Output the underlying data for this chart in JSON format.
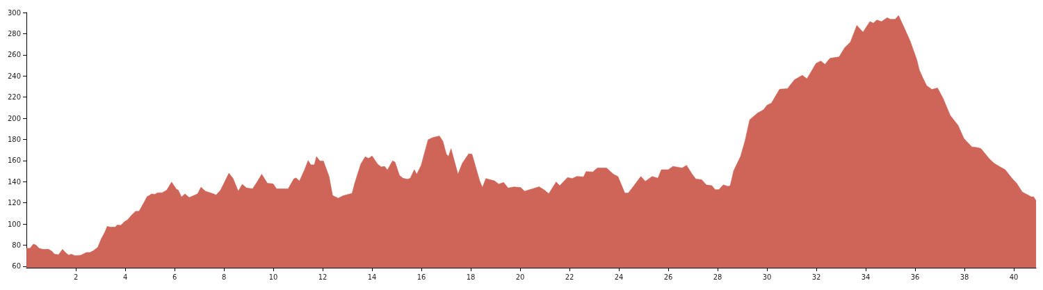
{
  "chart_data": {
    "type": "area",
    "color": "#cf6459",
    "x": [
      0,
      0.14,
      0.28,
      0.39,
      0.51,
      0.67,
      0.9,
      1.04,
      1.13,
      1.3,
      1.46,
      1.58,
      1.71,
      1.81,
      1.97,
      2.2,
      2.43,
      2.57,
      2.71,
      2.89,
      3.03,
      3.17,
      3.27,
      3.4,
      3.59,
      3.68,
      3.82,
      3.96,
      4.1,
      4.24,
      4.42,
      4.56,
      4.75,
      4.89,
      4.98,
      5.07,
      5.19,
      5.31,
      5.49,
      5.68,
      5.88,
      6.07,
      6.15,
      6.28,
      6.42,
      6.59,
      6.93,
      7.07,
      7.25,
      7.58,
      7.68,
      7.86,
      8.0,
      8.2,
      8.37,
      8.58,
      8.74,
      8.92,
      9.16,
      9.34,
      9.53,
      9.76,
      9.99,
      10.13,
      10.6,
      10.83,
      10.92,
      11.06,
      11.27,
      11.41,
      11.52,
      11.66,
      11.75,
      11.89,
      12.03,
      12.26,
      12.4,
      12.63,
      12.82,
      13.19,
      13.3,
      13.54,
      13.72,
      13.86,
      14.0,
      14.23,
      14.37,
      14.51,
      14.62,
      14.83,
      14.93,
      15.11,
      15.25,
      15.44,
      15.55,
      15.71,
      15.81,
      15.99,
      16.27,
      16.46,
      16.73,
      16.87,
      17.01,
      17.1,
      17.2,
      17.48,
      17.66,
      17.92,
      18.05,
      18.36,
      18.47,
      18.61,
      18.96,
      19.13,
      19.33,
      19.51,
      19.75,
      20.02,
      20.18,
      20.53,
      20.77,
      21.0,
      21.16,
      21.46,
      21.6,
      21.92,
      22.11,
      22.29,
      22.57,
      22.67,
      22.94,
      23.13,
      23.5,
      23.78,
      23.96,
      24.24,
      24.38,
      24.52,
      24.89,
      25.07,
      25.35,
      25.58,
      25.72,
      26.0,
      26.19,
      26.56,
      26.74,
      26.97,
      27.12,
      27.35,
      27.54,
      27.77,
      27.9,
      28.05,
      28.23,
      28.42,
      28.51,
      28.65,
      28.93,
      29.11,
      29.3,
      29.62,
      29.86,
      30.0,
      30.18,
      30.51,
      30.83,
      31.11,
      31.43,
      31.62,
      31.99,
      32.18,
      32.35,
      32.55,
      32.92,
      33.15,
      33.38,
      33.64,
      33.89,
      34.17,
      34.31,
      34.45,
      34.64,
      34.87,
      35.0,
      35.19,
      35.33,
      35.56,
      35.8,
      36.07,
      36.17,
      36.31,
      36.47,
      36.68,
      36.91,
      37.14,
      37.42,
      37.74,
      37.98,
      38.3,
      38.53,
      38.67,
      39.0,
      39.19,
      39.46,
      39.65,
      39.97,
      40.11,
      40.34,
      40.71,
      40.8,
      40.9
    ],
    "values": [
      77,
      77,
      81,
      80,
      77,
      76,
      76,
      74,
      71.5,
      71,
      76,
      73,
      70.5,
      71.5,
      70,
      70.5,
      73,
      73,
      74.7,
      78,
      86,
      92,
      97.7,
      97,
      97,
      99,
      98.7,
      102,
      104,
      108,
      112,
      112,
      120,
      126,
      127,
      128.5,
      128,
      129.5,
      129.5,
      132,
      139.6,
      133,
      132,
      125.5,
      128.5,
      125,
      128.5,
      134.8,
      131,
      128.5,
      127.4,
      132,
      138.5,
      148,
      143,
      131,
      137.5,
      134,
      133.3,
      139.6,
      147,
      138.5,
      138,
      133.3,
      133.3,
      142.7,
      143.6,
      140.6,
      151.5,
      160,
      156,
      156,
      163.7,
      159.5,
      159.5,
      144.8,
      127,
      124.3,
      126.6,
      129,
      138.7,
      156.5,
      163.5,
      162,
      164.3,
      156.5,
      154,
      154.5,
      151,
      159.7,
      158.6,
      146,
      143.3,
      142.3,
      143.3,
      151.3,
      147,
      155.5,
      179.7,
      181.8,
      183.2,
      178.2,
      166,
      164,
      171.2,
      147,
      157.6,
      166.4,
      166,
      140.8,
      134.5,
      143,
      140.8,
      137.7,
      139.3,
      134,
      135,
      134.5,
      131,
      133.5,
      135.2,
      131.8,
      128.6,
      139.8,
      136.2,
      144,
      143,
      145,
      144.6,
      149.6,
      149.2,
      153,
      153,
      147,
      145,
      129.3,
      129.3,
      133.5,
      145,
      140.4,
      145,
      143.3,
      151.3,
      151.3,
      154.5,
      153,
      155.5,
      147,
      142.5,
      141.9,
      137,
      136.2,
      132.5,
      132.5,
      137,
      135.6,
      136.2,
      150.3,
      164,
      178.7,
      198.6,
      205,
      208,
      212.3,
      214.4,
      227.4,
      228,
      236.4,
      240.6,
      237.4,
      252,
      254.2,
      251,
      256.7,
      258,
      266.8,
      272,
      287.8,
      281.5,
      291.5,
      289.9,
      293,
      291.5,
      295.1,
      293.6,
      293.6,
      297.2,
      285.6,
      273,
      255.3,
      245.8,
      238.4,
      230.7,
      227.3,
      228.6,
      218.5,
      202.8,
      193.3,
      180.7,
      172.9,
      172.3,
      171.3,
      161.8,
      157.6,
      153.8,
      151.3,
      141.9,
      138.7,
      130.3,
      125.7,
      125.7,
      122
    ],
    "xlim": [
      0,
      40.9
    ],
    "xticks": [
      2,
      4,
      6,
      8,
      10,
      12,
      14,
      16,
      18,
      20,
      22,
      24,
      26,
      28,
      30,
      32,
      34,
      36,
      38,
      40
    ],
    "ylim": [
      58.6,
      300
    ],
    "yticks": [
      60,
      80,
      100,
      120,
      140,
      160,
      180,
      200,
      220,
      240,
      260,
      280,
      300
    ],
    "grid": false,
    "marker": "none"
  }
}
